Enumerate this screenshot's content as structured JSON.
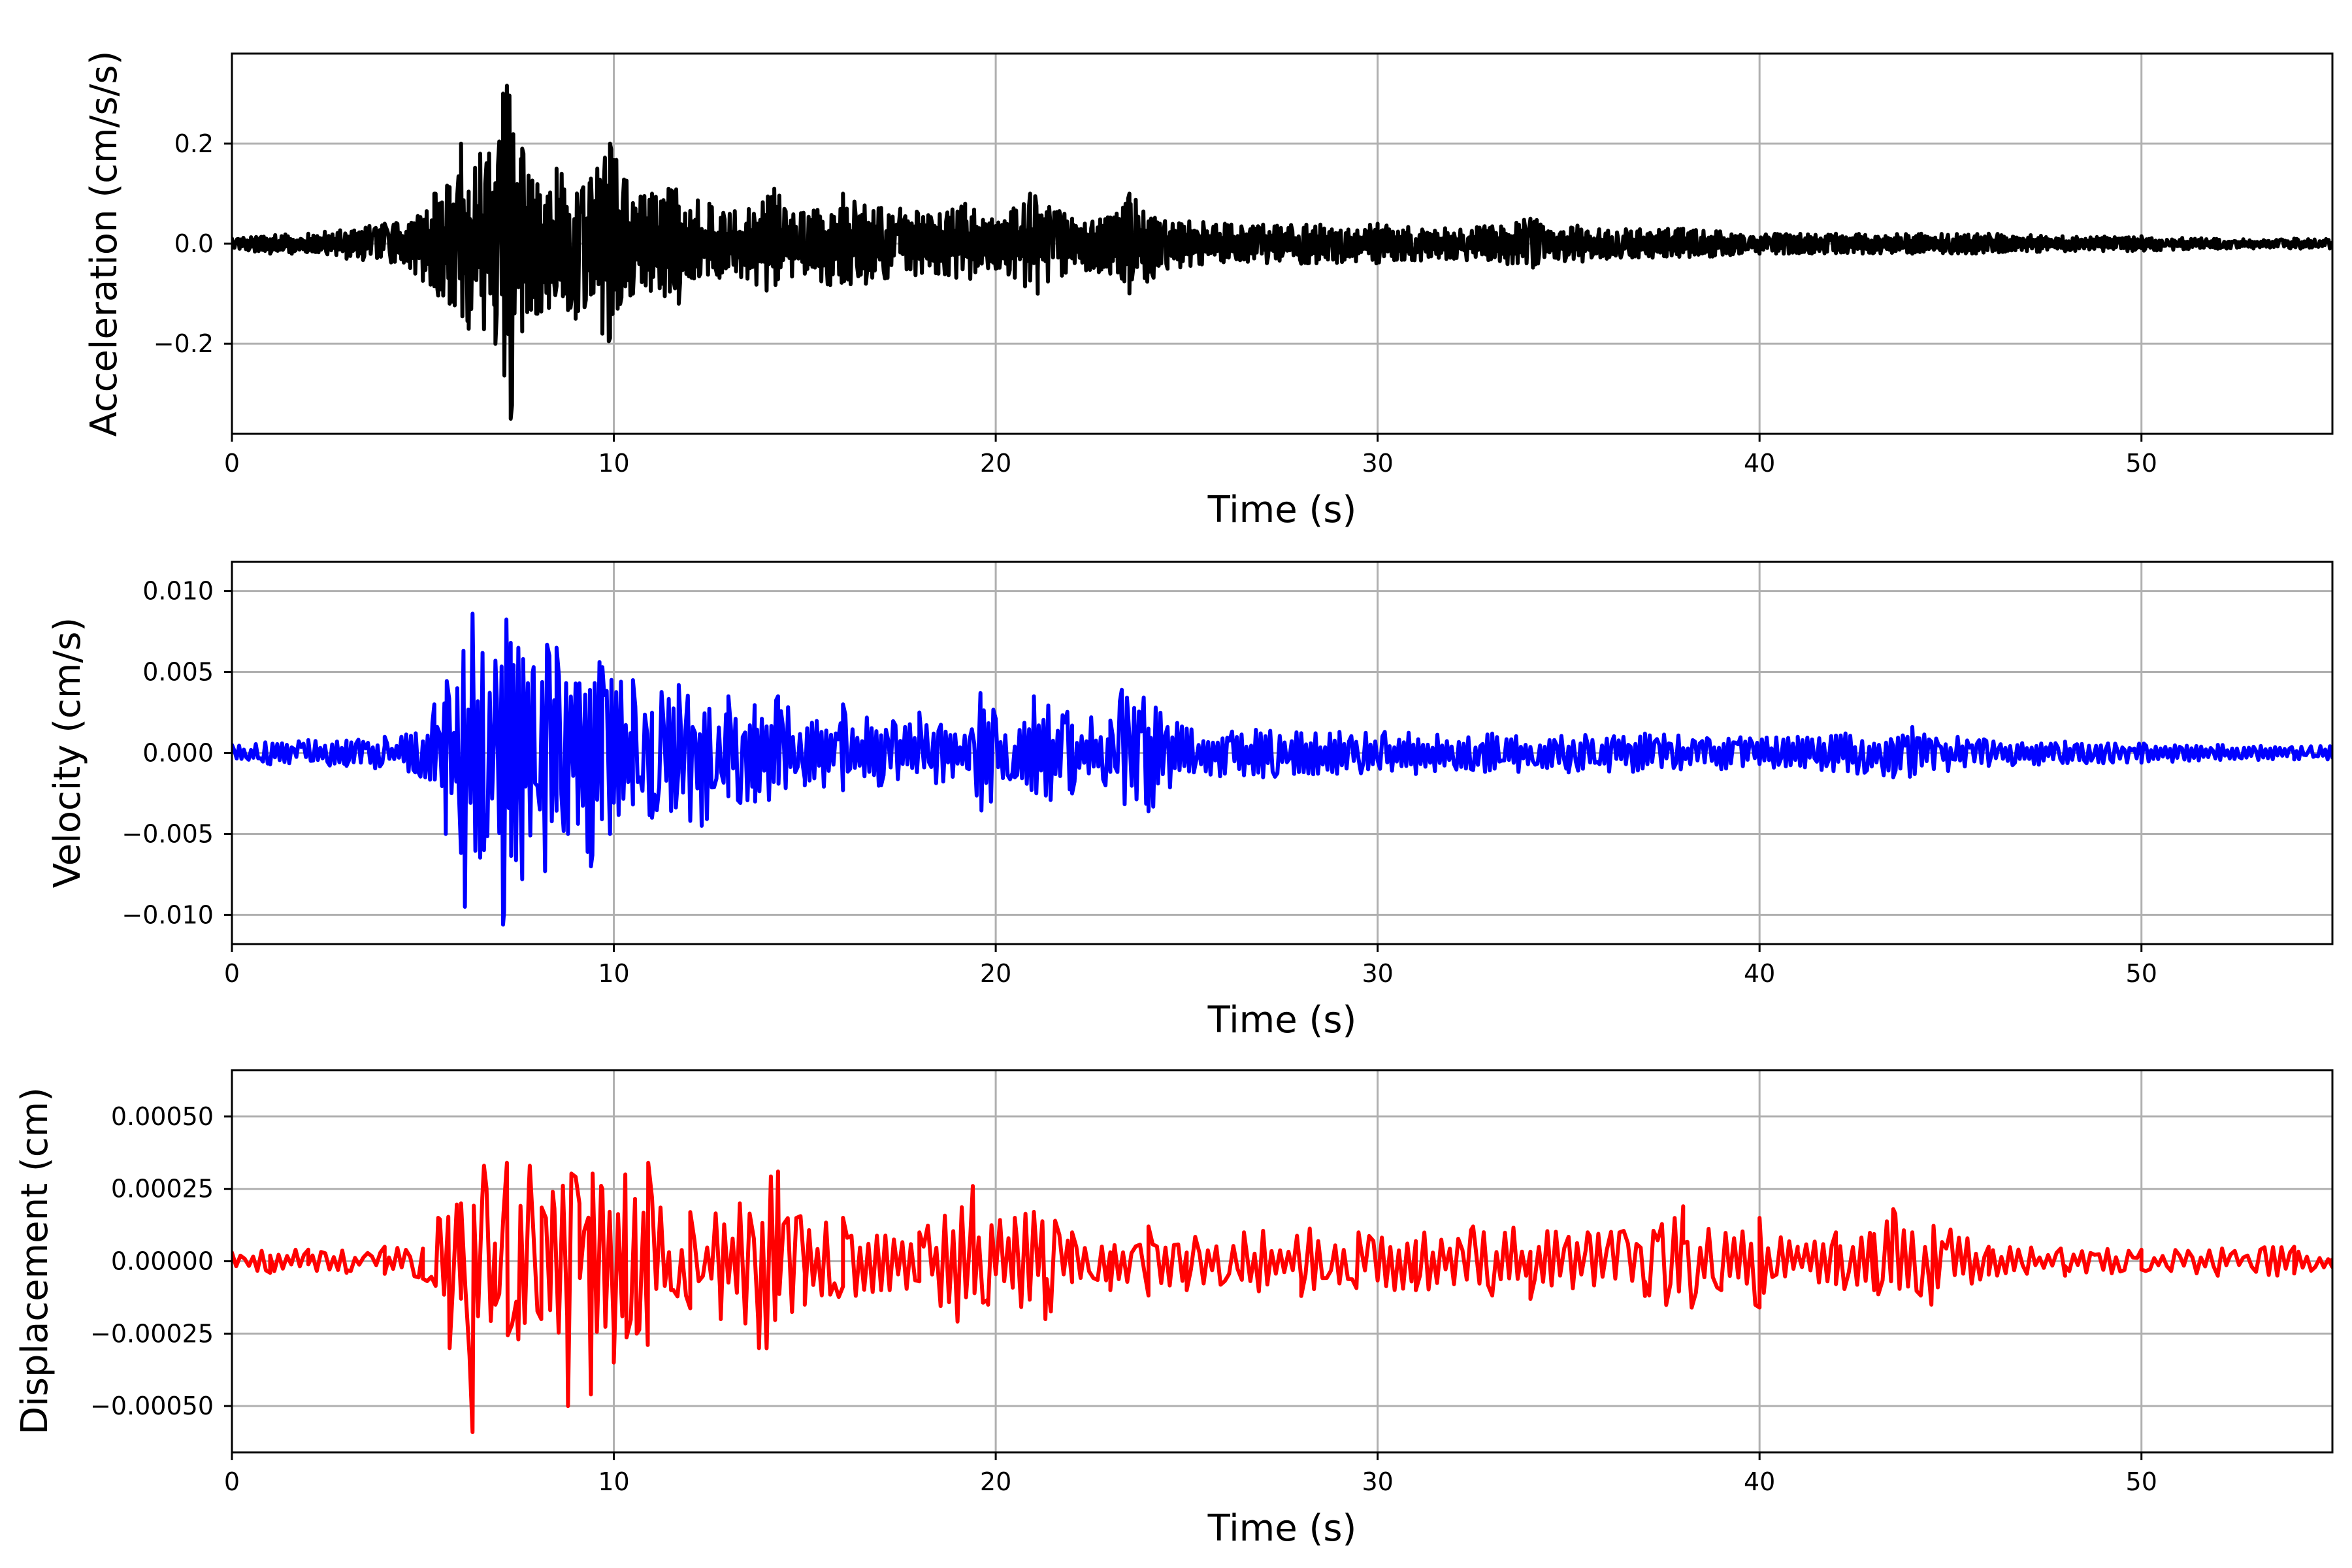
{
  "chart_data": [
    {
      "type": "line",
      "xlabel": "Time (s)",
      "ylabel": "Acceleration (cm/s/s)",
      "xlim": [
        0,
        55
      ],
      "ylim": [
        -0.38,
        0.38
      ],
      "xticks": [
        0,
        10,
        20,
        30,
        40,
        50
      ],
      "xtick_labels": [
        "0",
        "10",
        "20",
        "30",
        "40",
        "50"
      ],
      "yticks": [
        -0.2,
        0.0,
        0.2
      ],
      "ytick_labels": [
        "−0.2",
        "0.0",
        "0.2"
      ],
      "grid": true,
      "color": "#000000",
      "series": [
        {
          "x": [
            0,
            1,
            2,
            3,
            4,
            4.8,
            5.3,
            5.7,
            6.0,
            6.2,
            6.5,
            6.9,
            7.1,
            7.3,
            7.6,
            8.0,
            8.5,
            9.0,
            9.4,
            9.7,
            9.9,
            10.5,
            11.0,
            11.7,
            12.5,
            13.5,
            14.2,
            15.0,
            16.0,
            16.6,
            17.5,
            18.5,
            19.2,
            20.0,
            20.9,
            21.1,
            22.0,
            23.0,
            23.5,
            24.5,
            26.0,
            28.0,
            30.0,
            32.0,
            34.0,
            36.0,
            38.0,
            40.0,
            42.0,
            44.0,
            46.0,
            48.0,
            50.0,
            52.0,
            54.0,
            55.0
          ],
          "y": [
            0.01,
            -0.02,
            0.02,
            -0.03,
            0.04,
            -0.06,
            0.1,
            -0.12,
            0.2,
            -0.17,
            0.18,
            -0.2,
            0.3,
            -0.35,
            0.19,
            -0.14,
            0.15,
            -0.15,
            0.13,
            -0.18,
            0.2,
            -0.1,
            0.1,
            -0.12,
            0.08,
            -0.07,
            0.11,
            -0.06,
            0.1,
            -0.08,
            0.07,
            -0.06,
            0.08,
            -0.05,
            0.1,
            -0.1,
            0.05,
            -0.06,
            0.1,
            -0.05,
            0.04,
            -0.04,
            0.04,
            -0.03,
            0.05,
            -0.03,
            0.03,
            -0.02,
            0.02,
            -0.02,
            0.02,
            -0.015,
            0.015,
            -0.01,
            0.01,
            -0.01
          ]
        }
      ]
    },
    {
      "type": "line",
      "xlabel": "Time (s)",
      "ylabel": "Velocity (cm/s)",
      "xlim": [
        0,
        55
      ],
      "ylim": [
        -0.0118,
        0.0118
      ],
      "xticks": [
        0,
        10,
        20,
        30,
        40,
        50
      ],
      "xtick_labels": [
        "0",
        "10",
        "20",
        "30",
        "40",
        "50"
      ],
      "yticks": [
        -0.01,
        -0.005,
        0.0,
        0.005,
        0.01
      ],
      "ytick_labels": [
        "−0.010",
        "−0.005",
        "0.000",
        "0.005",
        "0.010"
      ],
      "grid": true,
      "color": "#0000ff",
      "series": [
        {
          "x": [
            0,
            1,
            2,
            3,
            4,
            4.8,
            5.3,
            5.6,
            5.9,
            6.1,
            6.3,
            6.6,
            6.9,
            7.1,
            7.3,
            7.6,
            7.9,
            8.2,
            8.5,
            8.8,
            9.1,
            9.4,
            9.7,
            9.9,
            10.5,
            11.0,
            11.7,
            12.3,
            13.0,
            13.7,
            14.3,
            15.0,
            16.0,
            17.0,
            18.0,
            19.3,
            19.6,
            20.5,
            21.0,
            22.0,
            23.0,
            23.3,
            24.0,
            25.0,
            27.0,
            29.0,
            31.0,
            33.0,
            35.0,
            37.0,
            39.0,
            41.0,
            43.5,
            44.0,
            46.0,
            48.0,
            50.0,
            52.0,
            54.0,
            55.0
          ],
          "y": [
            0.0005,
            -0.0007,
            0.0008,
            -0.0008,
            0.001,
            -0.0012,
            0.003,
            -0.005,
            0.004,
            -0.0095,
            0.0086,
            -0.006,
            0.0057,
            -0.0106,
            0.0068,
            -0.0078,
            0.0053,
            -0.0073,
            0.0065,
            -0.005,
            0.0043,
            -0.007,
            0.0053,
            -0.005,
            0.0045,
            -0.004,
            0.0042,
            -0.0045,
            0.0035,
            -0.003,
            0.0035,
            -0.002,
            0.003,
            -0.002,
            0.0025,
            -0.001,
            0.0037,
            -0.0015,
            0.0035,
            -0.0025,
            0.002,
            0.0039,
            -0.0036,
            0.0015,
            -0.0015,
            0.0013,
            -0.0013,
            0.0012,
            -0.0012,
            0.0012,
            -0.001,
            0.001,
            -0.0015,
            0.0016,
            -0.0008,
            0.0007,
            -0.0006,
            0.0005,
            -0.0004,
            0.0005
          ]
        }
      ]
    },
    {
      "type": "line",
      "xlabel": "Time (s)",
      "ylabel": "Displacement (cm)",
      "xlim": [
        0,
        55
      ],
      "ylim": [
        -0.00066,
        0.00066
      ],
      "xticks": [
        0,
        10,
        20,
        30,
        40,
        50
      ],
      "xtick_labels": [
        "0",
        "10",
        "20",
        "30",
        "40",
        "50"
      ],
      "yticks": [
        -0.0005,
        -0.00025,
        0.0,
        0.00025,
        0.0005
      ],
      "ytick_labels": [
        "−0.00050",
        "−0.00025",
        "0.00000",
        "0.00025",
        "0.00050"
      ],
      "grid": true,
      "color": "#ff0000",
      "series": [
        {
          "x": [
            0,
            1,
            2,
            3,
            4,
            5.0,
            5.4,
            5.7,
            6.0,
            6.3,
            6.6,
            6.9,
            7.2,
            7.5,
            7.8,
            8.1,
            8.4,
            8.8,
            9.1,
            9.4,
            9.7,
            10.0,
            10.3,
            10.6,
            10.9,
            11.5,
            12.0,
            12.8,
            13.3,
            13.8,
            14.3,
            15.0,
            16.0,
            17.0,
            18.0,
            19.4,
            19.8,
            20.5,
            21.3,
            22.0,
            23.0,
            24.0,
            25.0,
            26.5,
            28.0,
            29.5,
            31.0,
            32.5,
            34.0,
            35.5,
            37.0,
            38.0,
            39.0,
            40.0,
            41.0,
            42.0,
            43.0,
            43.5,
            44.5,
            46.0,
            48.0,
            50.0,
            52.0,
            54.0,
            55.0
          ],
          "y": [
            3e-05,
            -4e-05,
            4e-05,
            -4e-05,
            5e-05,
            -6e-05,
            0.00015,
            -0.0003,
            0.0002,
            -0.00059,
            0.00033,
            -0.00015,
            0.00034,
            -0.00027,
            0.00033,
            -0.0002,
            0.00024,
            -0.0005,
            0.0002,
            -0.00046,
            0.00025,
            -0.00035,
            0.0003,
            -0.00025,
            0.00034,
            -0.0001,
            0.00017,
            -0.0002,
            0.0002,
            -0.0003,
            0.00031,
            -0.00015,
            0.00015,
            -0.0001,
            0.0001,
            0.00026,
            -0.00015,
            0.00015,
            -0.0002,
            0.0001,
            -0.0001,
            0.00012,
            -0.0001,
            0.0001,
            -0.00012,
            0.0001,
            -0.0001,
            0.00012,
            -0.00013,
            0.0001,
            -0.00012,
            0.00019,
            -0.0001,
            -0.00016,
            5e-05,
            0.0001,
            -0.0001,
            0.00018,
            -0.00015,
            5e-05,
            -5e-05,
            4e-05,
            -5e-05,
            5e-05,
            -2e-05
          ]
        }
      ]
    }
  ]
}
